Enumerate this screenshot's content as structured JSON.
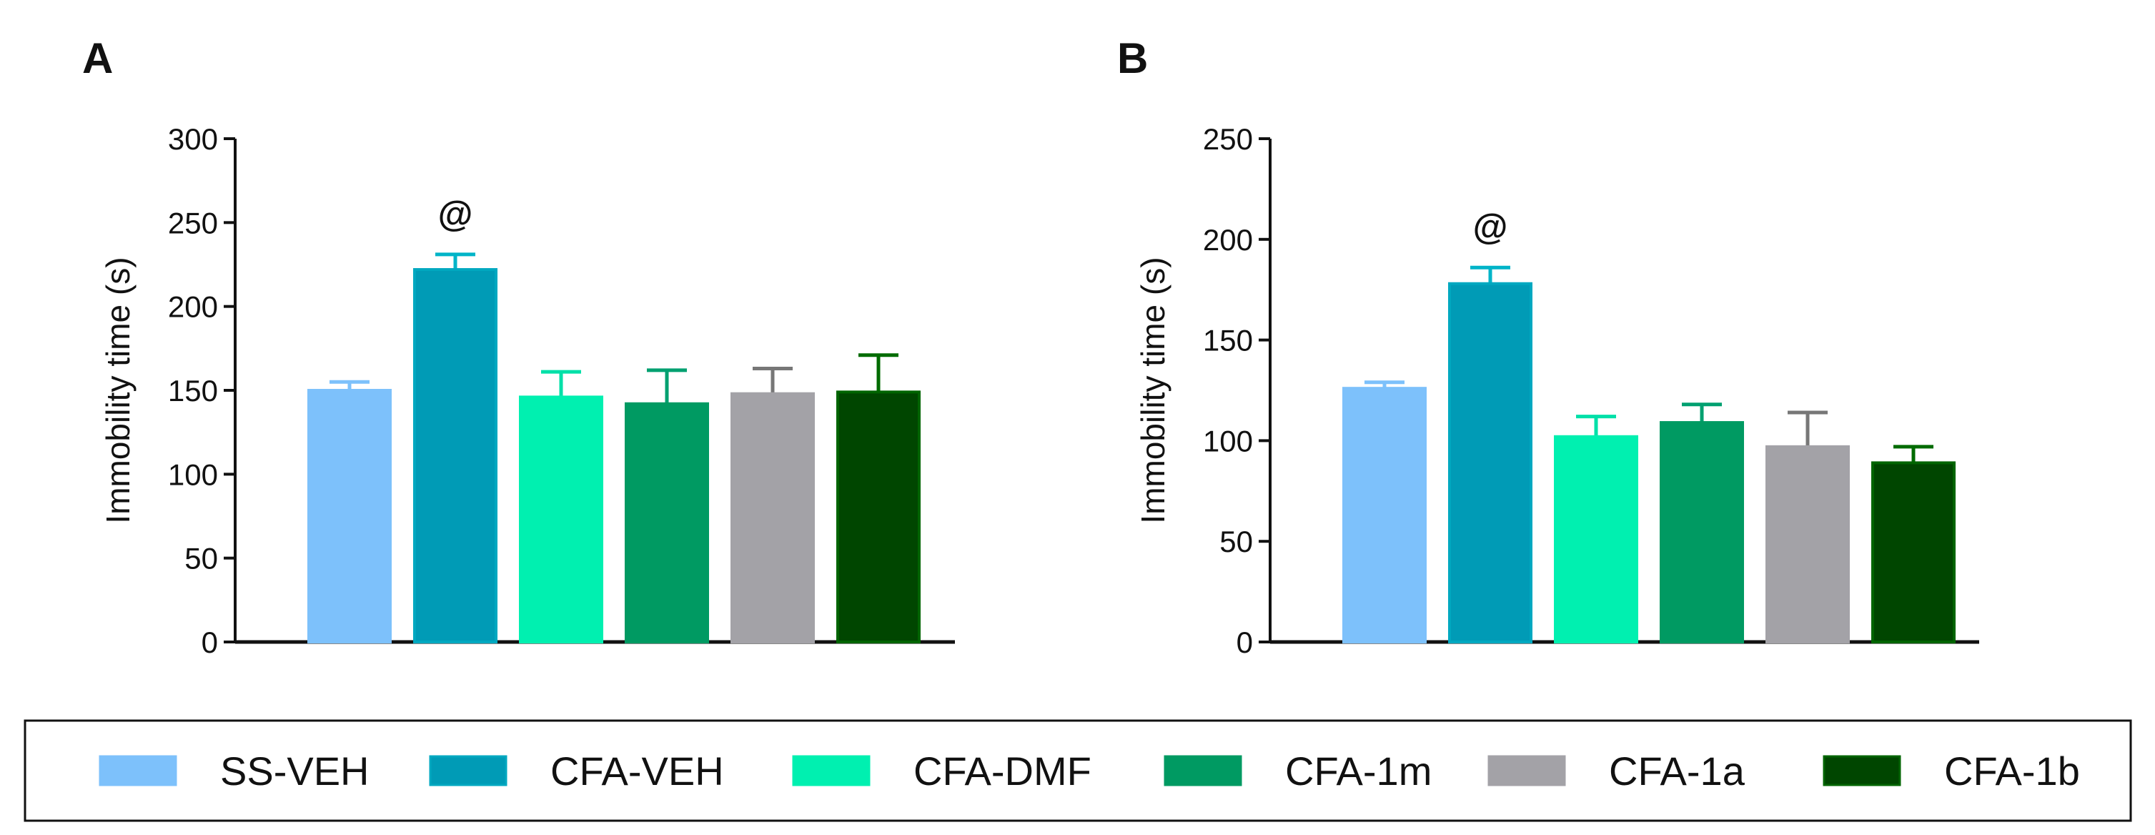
{
  "chart_data": [
    {
      "type": "bar",
      "panel_label": "A",
      "title": "",
      "xlabel": "",
      "ylabel": "Immobility time (s)",
      "ylim": [
        0,
        300
      ],
      "yticks": [
        0,
        50,
        100,
        150,
        200,
        250,
        300
      ],
      "categories": [
        "SS-VEH",
        "CFA-VEH",
        "CFA-DMF",
        "CFA-1m",
        "CFA-1a",
        "CFA-1b"
      ],
      "values": [
        150,
        222,
        146,
        142,
        148,
        149
      ],
      "error_upper": [
        155,
        231,
        161,
        162,
        163,
        171
      ],
      "annotations": [
        {
          "category": "CFA-VEH",
          "text": "@"
        }
      ]
    },
    {
      "type": "bar",
      "panel_label": "B",
      "title": "",
      "xlabel": "",
      "ylabel": "Immobility time (s)",
      "ylim": [
        0,
        250
      ],
      "yticks": [
        0,
        50,
        100,
        150,
        200,
        250
      ],
      "categories": [
        "SS-VEH",
        "CFA-VEH",
        "CFA-DMF",
        "CFA-1m",
        "CFA-1a",
        "CFA-1b"
      ],
      "values": [
        126,
        178,
        102,
        109,
        97,
        89
      ],
      "error_upper": [
        129,
        186,
        112,
        118,
        114,
        97
      ],
      "annotations": [
        {
          "category": "CFA-VEH",
          "text": "@"
        }
      ]
    }
  ],
  "legend": {
    "placement": "bottom",
    "entries": [
      {
        "label": "SS-VEH",
        "color": "#7dc1fb",
        "err": "#7dc1fb",
        "border": "#7dc1fb"
      },
      {
        "label": "CFA-VEH",
        "color": "#009bb6",
        "err": "#00b4c8",
        "border": "#00a8c0"
      },
      {
        "label": "CFA-DMF",
        "color": "#00f0b0",
        "err": "#00e0a8",
        "border": "#00f0b0"
      },
      {
        "label": "CFA-1m",
        "color": "#009a62",
        "err": "#00a070",
        "border": "#009a62"
      },
      {
        "label": "CFA-1a",
        "color": "#a3a2a7",
        "err": "#777777",
        "border": "#a3a2a7"
      },
      {
        "label": "CFA-1b",
        "color": "#004600",
        "err": "#006b00",
        "border": "#006400"
      }
    ]
  }
}
